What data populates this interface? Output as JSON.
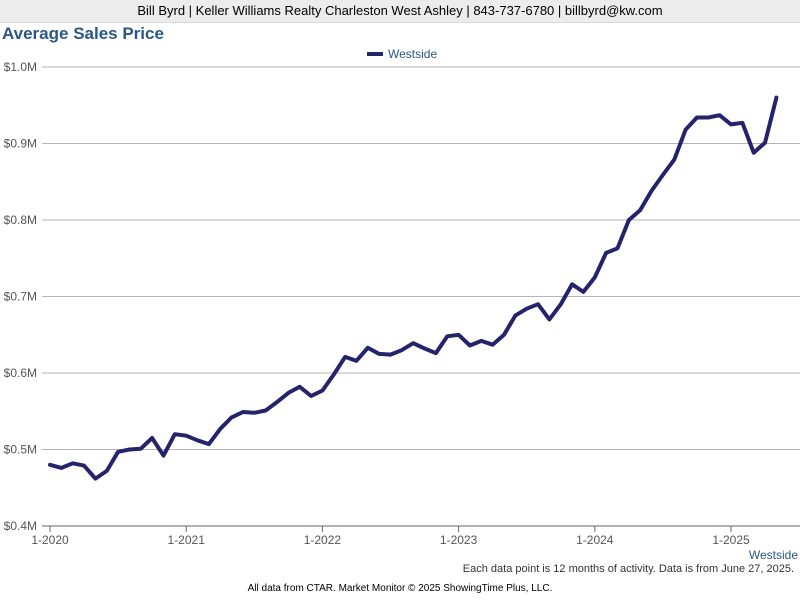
{
  "header": {
    "agent_info": "Bill Byrd | Keller Williams Realty Charleston West Ashley | 843-737-6780 | billbyrd@kw.com"
  },
  "chart_data": {
    "type": "line",
    "title": "Average Sales Price",
    "legend": {
      "position": "top-center"
    },
    "series": [
      {
        "name": "Westside",
        "color": "#24236b",
        "end_label": "Westside",
        "x": [
          "2020-01",
          "2020-02",
          "2020-03",
          "2020-04",
          "2020-05",
          "2020-06",
          "2020-07",
          "2020-08",
          "2020-09",
          "2020-10",
          "2020-11",
          "2020-12",
          "2021-01",
          "2021-02",
          "2021-03",
          "2021-04",
          "2021-05",
          "2021-06",
          "2021-07",
          "2021-08",
          "2021-09",
          "2021-10",
          "2021-11",
          "2021-12",
          "2022-01",
          "2022-02",
          "2022-03",
          "2022-04",
          "2022-05",
          "2022-06",
          "2022-07",
          "2022-08",
          "2022-09",
          "2022-10",
          "2022-11",
          "2022-12",
          "2023-01",
          "2023-02",
          "2023-03",
          "2023-04",
          "2023-05",
          "2023-06",
          "2023-07",
          "2023-08",
          "2023-09",
          "2023-10",
          "2023-11",
          "2023-12",
          "2024-01",
          "2024-02",
          "2024-03",
          "2024-04",
          "2024-05",
          "2024-06",
          "2024-07",
          "2024-08",
          "2024-09",
          "2024-10",
          "2024-11",
          "2024-12",
          "2025-01",
          "2025-02",
          "2025-03",
          "2025-04",
          "2025-05"
        ],
        "values": [
          0.48,
          0.476,
          0.482,
          0.479,
          0.462,
          0.472,
          0.497,
          0.5,
          0.501,
          0.515,
          0.492,
          0.52,
          0.518,
          0.512,
          0.507,
          0.527,
          0.542,
          0.549,
          0.548,
          0.551,
          0.562,
          0.574,
          0.582,
          0.57,
          0.577,
          0.598,
          0.621,
          0.616,
          0.633,
          0.625,
          0.624,
          0.63,
          0.639,
          0.632,
          0.626,
          0.648,
          0.65,
          0.636,
          0.642,
          0.637,
          0.65,
          0.675,
          0.684,
          0.69,
          0.67,
          0.69,
          0.716,
          0.706,
          0.725,
          0.757,
          0.763,
          0.8,
          0.813,
          0.838,
          0.859,
          0.879,
          0.918,
          0.934,
          0.934,
          0.937,
          0.925,
          0.927,
          0.888,
          0.901,
          0.96
        ]
      }
    ],
    "y_axis": {
      "range": [
        0.4,
        1.0
      ],
      "ticks": [
        0.4,
        0.5,
        0.6,
        0.7,
        0.8,
        0.9,
        1.0
      ],
      "tick_labels": [
        "$0.4M",
        "$0.5M",
        "$0.6M",
        "$0.7M",
        "$0.8M",
        "$0.9M",
        "$1.0M"
      ],
      "unit": "millions USD",
      "grid": true
    },
    "x_axis": {
      "tick_labels": [
        "1-2020",
        "1-2021",
        "1-2022",
        "1-2023",
        "1-2024",
        "1-2025"
      ],
      "tick_positions": [
        "2020-01",
        "2021-01",
        "2022-01",
        "2023-01",
        "2024-01",
        "2025-01"
      ]
    }
  },
  "footnote": "Each data point is 12 months of activity. Data is from June 27, 2025.",
  "footer": "All data from CTAR. Market Monitor © 2025 ShowingTime Plus, LLC."
}
